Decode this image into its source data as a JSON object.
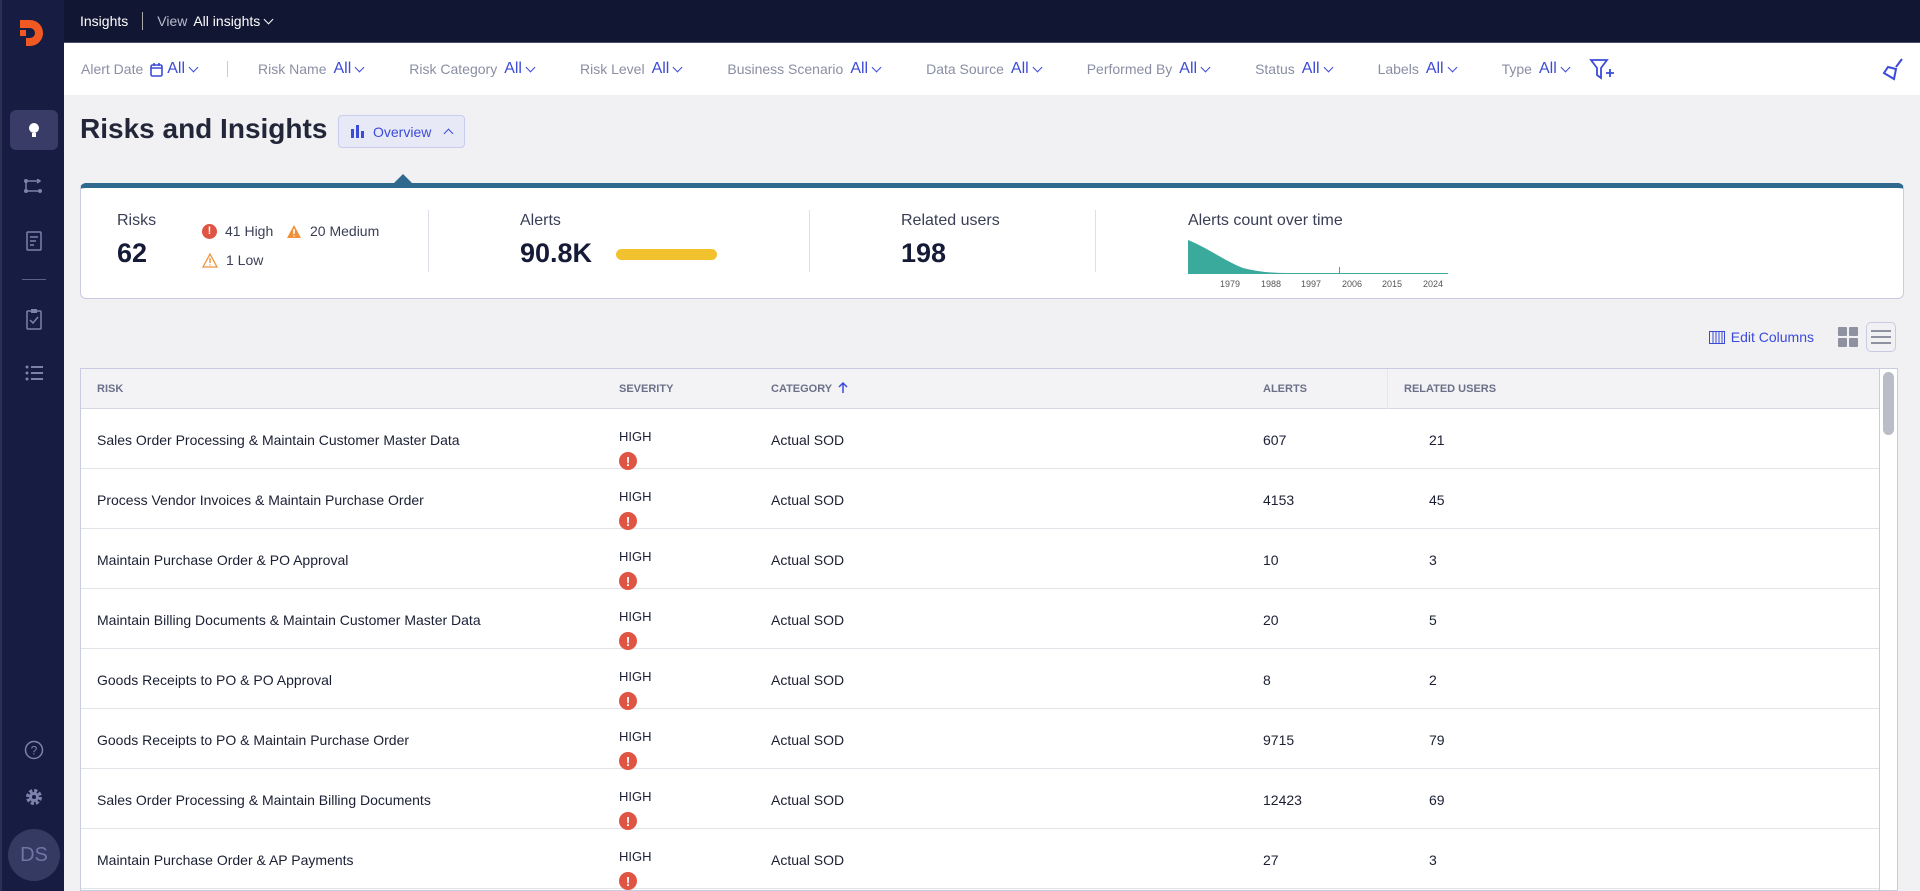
{
  "topbar": {
    "section": "Insights",
    "view_label": "View",
    "view_value": "All insights"
  },
  "filters": [
    {
      "label": "Alert Date",
      "value": "All"
    },
    {
      "label": "Risk Name",
      "value": "All"
    },
    {
      "label": "Risk Category",
      "value": "All"
    },
    {
      "label": "Risk Level",
      "value": "All"
    },
    {
      "label": "Business Scenario",
      "value": "All"
    },
    {
      "label": "Data Source",
      "value": "All"
    },
    {
      "label": "Performed By",
      "value": "All"
    },
    {
      "label": "Status",
      "value": "All"
    },
    {
      "label": "Labels",
      "value": "All"
    },
    {
      "label": "Type",
      "value": "All"
    }
  ],
  "page": {
    "title": "Risks and Insights",
    "overview_label": "Overview"
  },
  "summary": {
    "risks_label": "Risks",
    "risks_value": "62",
    "high": "41 High",
    "medium": "20 Medium",
    "low": "1 Low",
    "alerts_label": "Alerts",
    "alerts_value": "90.8K",
    "users_label": "Related users",
    "users_value": "198",
    "chart_title": "Alerts count over time",
    "chart_ticks": [
      "1979",
      "1988",
      "1997",
      "2006",
      "2015",
      "2024"
    ]
  },
  "toolbar": {
    "edit_columns": "Edit Columns"
  },
  "user": {
    "initials": "DS"
  },
  "table": {
    "headers": {
      "risk": "RISK",
      "severity": "SEVERITY",
      "category": "CATEGORY",
      "alerts": "ALERTS",
      "users": "RELATED USERS"
    },
    "rows": [
      {
        "risk": "Sales Order Processing & Maintain Customer Master Data",
        "severity": "HIGH",
        "category": "Actual SOD",
        "alerts": "607",
        "users": "21"
      },
      {
        "risk": "Process Vendor Invoices & Maintain Purchase Order",
        "severity": "HIGH",
        "category": "Actual SOD",
        "alerts": "4153",
        "users": "45"
      },
      {
        "risk": "Maintain Purchase Order & PO Approval",
        "severity": "HIGH",
        "category": "Actual SOD",
        "alerts": "10",
        "users": "3"
      },
      {
        "risk": "Maintain Billing Documents & Maintain Customer Master Data",
        "severity": "HIGH",
        "category": "Actual SOD",
        "alerts": "20",
        "users": "5"
      },
      {
        "risk": "Goods Receipts to PO & PO Approval",
        "severity": "HIGH",
        "category": "Actual SOD",
        "alerts": "8",
        "users": "2"
      },
      {
        "risk": "Goods Receipts to PO & Maintain Purchase Order",
        "severity": "HIGH",
        "category": "Actual SOD",
        "alerts": "9715",
        "users": "79"
      },
      {
        "risk": "Sales Order Processing & Maintain Billing Documents",
        "severity": "HIGH",
        "category": "Actual SOD",
        "alerts": "12423",
        "users": "69"
      },
      {
        "risk": "Maintain Purchase Order & AP Payments",
        "severity": "HIGH",
        "category": "Actual SOD",
        "alerts": "27",
        "users": "3"
      }
    ]
  }
}
